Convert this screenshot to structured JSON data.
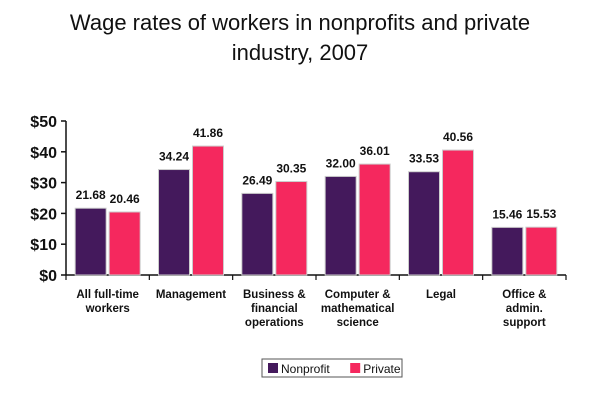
{
  "chart_data": {
    "type": "bar",
    "title_lines": [
      "Wage rates of workers in nonprofits and private",
      "industry, 2007"
    ],
    "categories": [
      [
        "All full-time",
        "workers"
      ],
      [
        "Management"
      ],
      [
        "Business &",
        "financial",
        "operations"
      ],
      [
        "Computer &",
        "mathematical",
        "science"
      ],
      [
        "Legal"
      ],
      [
        "Office &",
        "admin.",
        "support"
      ]
    ],
    "series": [
      {
        "name": "Nonprofit",
        "color": "#44195c",
        "values": [
          21.68,
          34.24,
          26.49,
          32.0,
          33.53,
          15.46
        ],
        "labels": [
          "21.68",
          "34.24",
          "26.49",
          "32.00",
          "33.53",
          "15.46"
        ]
      },
      {
        "name": "Private",
        "color": "#f5285e",
        "values": [
          20.46,
          41.86,
          30.35,
          36.01,
          40.56,
          15.53
        ],
        "labels": [
          "20.46",
          "41.86",
          "30.35",
          "36.01",
          "40.56",
          "15.53"
        ]
      }
    ],
    "ylim": [
      0,
      50
    ],
    "yticks": [
      0,
      10,
      20,
      30,
      40,
      50
    ],
    "ytick_labels": [
      "$0",
      "$10",
      "$20",
      "$30",
      "$40",
      "$50"
    ],
    "legend_position": "bottom-center",
    "grid": false
  }
}
